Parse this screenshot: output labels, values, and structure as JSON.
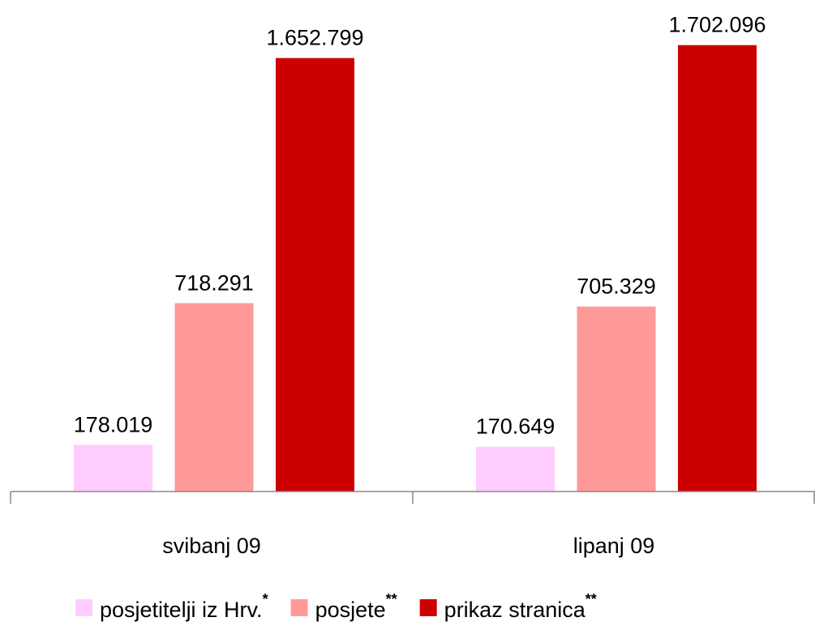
{
  "chart_data": {
    "type": "bar",
    "categories": [
      "svibanj 09",
      "lipanj 09"
    ],
    "series": [
      {
        "name": "posjetitelji iz Hrv.",
        "footnote": "*",
        "color": "#ffccff",
        "values": [
          178019,
          170649
        ],
        "value_labels": [
          "178.019",
          "170.649"
        ]
      },
      {
        "name": "posjete",
        "footnote": "**",
        "color": "#ff9999",
        "values": [
          718291,
          705329
        ],
        "value_labels": [
          "718.291",
          "705.329"
        ]
      },
      {
        "name": "prikaz stranica",
        "footnote": "**",
        "color": "#cc0000",
        "values": [
          1652799,
          1702096
        ],
        "value_labels": [
          "1.652.799",
          "1.702.096"
        ]
      }
    ],
    "ylim": [
      0,
      1800000
    ],
    "grid": false,
    "legend": "bottom"
  }
}
